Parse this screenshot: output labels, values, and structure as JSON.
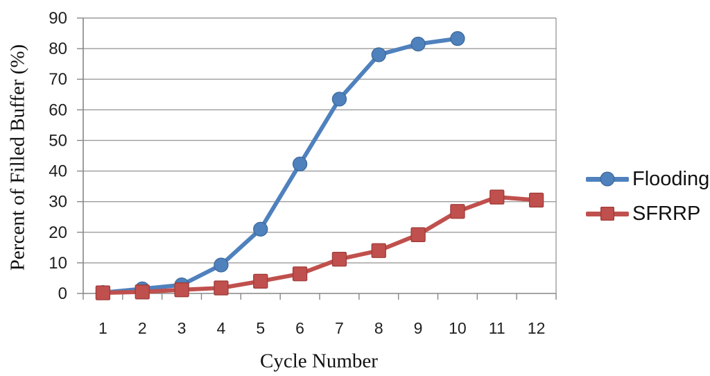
{
  "chart_data": {
    "type": "line",
    "title": "",
    "xlabel": "Cycle Number",
    "ylabel": "Percent of Filled Buffer (%)",
    "x_categories": [
      "1",
      "2",
      "3",
      "4",
      "5",
      "6",
      "7",
      "8",
      "9",
      "10",
      "11",
      "12"
    ],
    "ylim": [
      0,
      90
    ],
    "ytick_step": 10,
    "ytick_labels": [
      "0",
      "10",
      "20",
      "30",
      "40",
      "50",
      "60",
      "70",
      "80",
      "90"
    ],
    "grid": "horizontal",
    "legend_position": "right",
    "series": [
      {
        "name": "Flooding",
        "marker": "circle",
        "color": "#4F81BD",
        "edge_color": "#3C699B",
        "values": [
          0.3,
          1.5,
          2.8,
          9.3,
          21,
          42.3,
          63.5,
          78,
          81.5,
          83.3
        ]
      },
      {
        "name": "SFRRP",
        "marker": "square",
        "color": "#C0504D",
        "edge_color": "#9E3B39",
        "values": [
          0.2,
          0.5,
          1.2,
          1.8,
          4,
          6.4,
          11.2,
          14,
          19.2,
          26.8,
          31.5,
          30.5
        ]
      }
    ],
    "colors": {
      "gridline": "#9C9C9C",
      "axis": "#868686",
      "tick_label": "#1F1F1F"
    }
  }
}
